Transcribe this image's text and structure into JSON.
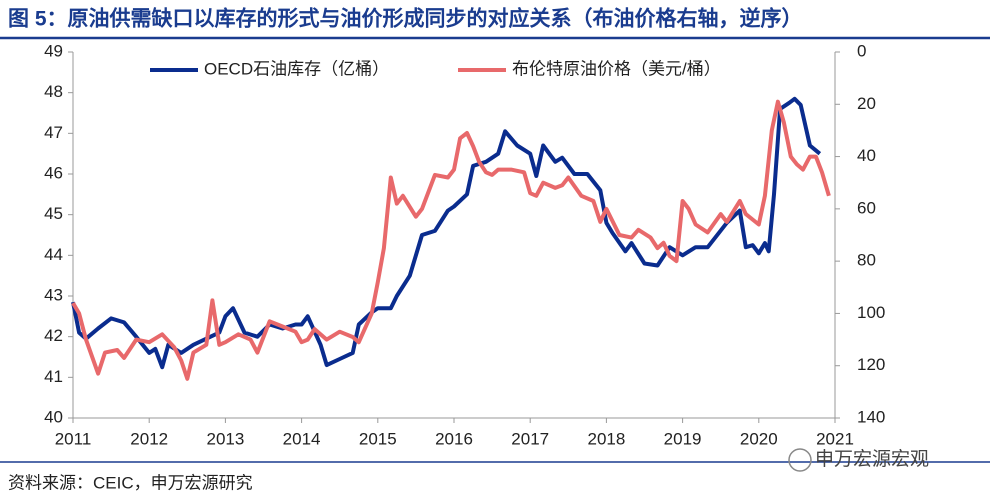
{
  "chart_data": {
    "type": "line",
    "title": "图 5：原油供需缺口以库存的形式与油价形成同步的对应关系（布油价格右轴，逆序）",
    "source": "资料来源：CEIC，申万宏源研究",
    "watermark": "申万宏源宏观",
    "xlim": [
      2011,
      2021
    ],
    "xticks": [
      2011,
      2012,
      2013,
      2014,
      2015,
      2016,
      2017,
      2018,
      2019,
      2020,
      2021
    ],
    "ylim": [
      40,
      49
    ],
    "yticks": [
      40,
      41,
      42,
      43,
      44,
      45,
      46,
      47,
      48,
      49
    ],
    "y2lim": [
      140,
      0
    ],
    "y2ticks": [
      0,
      20,
      40,
      60,
      80,
      100,
      120,
      140
    ],
    "legend": "top",
    "series": [
      {
        "name": "OECD石油库存（亿桶）",
        "color": "#0a2c8e",
        "x": [
          2011.0,
          2011.08,
          2011.17,
          2011.33,
          2011.5,
          2011.67,
          2011.83,
          2012.0,
          2012.08,
          2012.17,
          2012.25,
          2012.42,
          2012.58,
          2012.75,
          2012.92,
          2013.0,
          2013.1,
          2013.25,
          2013.42,
          2013.58,
          2013.75,
          2013.92,
          2014.0,
          2014.08,
          2014.25,
          2014.33,
          2014.5,
          2014.67,
          2014.75,
          2014.92,
          2015.0,
          2015.17,
          2015.25,
          2015.42,
          2015.58,
          2015.75,
          2015.92,
          2016.0,
          2016.17,
          2016.25,
          2016.42,
          2016.58,
          2016.67,
          2016.83,
          2017.0,
          2017.08,
          2017.17,
          2017.33,
          2017.42,
          2017.58,
          2017.75,
          2017.92,
          2018.0,
          2018.08,
          2018.25,
          2018.33,
          2018.5,
          2018.67,
          2018.83,
          2019.0,
          2019.17,
          2019.33,
          2019.58,
          2019.75,
          2019.83,
          2019.92,
          2020.0,
          2020.08,
          2020.13,
          2020.2,
          2020.28,
          2020.4,
          2020.47,
          2020.55,
          2020.67,
          2020.8
        ],
        "values": [
          42.85,
          42.1,
          41.95,
          42.2,
          42.45,
          42.35,
          42.0,
          41.6,
          41.7,
          41.25,
          41.8,
          41.6,
          41.8,
          41.95,
          42.1,
          42.5,
          42.7,
          42.1,
          42.0,
          42.3,
          42.2,
          42.3,
          42.3,
          42.5,
          41.8,
          41.3,
          41.45,
          41.6,
          42.3,
          42.6,
          42.7,
          42.7,
          43.0,
          43.5,
          44.5,
          44.6,
          45.1,
          45.2,
          45.5,
          46.2,
          46.3,
          46.5,
          47.05,
          46.7,
          46.5,
          45.95,
          46.7,
          46.3,
          46.4,
          46.0,
          46.0,
          45.6,
          44.8,
          44.55,
          44.1,
          44.3,
          43.8,
          43.75,
          44.2,
          44.0,
          44.2,
          44.2,
          44.8,
          45.1,
          44.2,
          44.25,
          44.05,
          44.3,
          44.1,
          45.5,
          47.6,
          47.75,
          47.85,
          47.7,
          46.7,
          46.5
        ]
      },
      {
        "name": "布伦特原油价格（美元/桶）",
        "color": "#e8696b",
        "axis": "y2",
        "x": [
          2011.0,
          2011.08,
          2011.17,
          2011.33,
          2011.42,
          2011.58,
          2011.67,
          2011.83,
          2012.0,
          2012.17,
          2012.33,
          2012.42,
          2012.5,
          2012.58,
          2012.75,
          2012.83,
          2012.92,
          2013.0,
          2013.17,
          2013.33,
          2013.42,
          2013.58,
          2013.75,
          2013.92,
          2014.0,
          2014.08,
          2014.17,
          2014.33,
          2014.5,
          2014.67,
          2014.75,
          2014.92,
          2015.0,
          2015.08,
          2015.17,
          2015.25,
          2015.33,
          2015.5,
          2015.58,
          2015.75,
          2015.92,
          2016.0,
          2016.08,
          2016.17,
          2016.25,
          2016.33,
          2016.42,
          2016.5,
          2016.58,
          2016.75,
          2016.92,
          2017.0,
          2017.08,
          2017.17,
          2017.33,
          2017.42,
          2017.5,
          2017.67,
          2017.83,
          2017.92,
          2018.0,
          2018.17,
          2018.33,
          2018.42,
          2018.58,
          2018.67,
          2018.75,
          2018.83,
          2018.92,
          2019.0,
          2019.08,
          2019.17,
          2019.33,
          2019.5,
          2019.58,
          2019.75,
          2019.83,
          2020.0,
          2020.08,
          2020.17,
          2020.25,
          2020.33,
          2020.42,
          2020.5,
          2020.58,
          2020.67,
          2020.75,
          2020.83,
          2020.92
        ],
        "values": [
          96,
          100,
          110,
          123,
          115,
          114,
          117,
          110,
          111,
          108,
          113,
          118,
          125,
          115,
          112,
          95,
          112,
          111,
          108,
          110,
          115,
          103,
          105,
          107,
          111,
          110,
          106,
          110,
          107,
          109,
          111,
          100,
          88,
          75,
          48,
          58,
          55,
          63,
          60,
          47,
          48,
          45,
          33,
          31,
          36,
          42,
          46,
          47,
          45,
          45,
          46,
          54,
          55,
          50,
          52,
          51,
          48,
          55,
          57,
          65,
          60,
          70,
          71,
          68,
          71,
          75,
          73,
          78,
          80,
          57,
          60,
          66,
          69,
          62,
          65,
          57,
          62,
          66,
          55,
          30,
          19,
          27,
          40,
          43,
          45,
          40,
          40,
          46,
          55
        ]
      }
    ]
  }
}
